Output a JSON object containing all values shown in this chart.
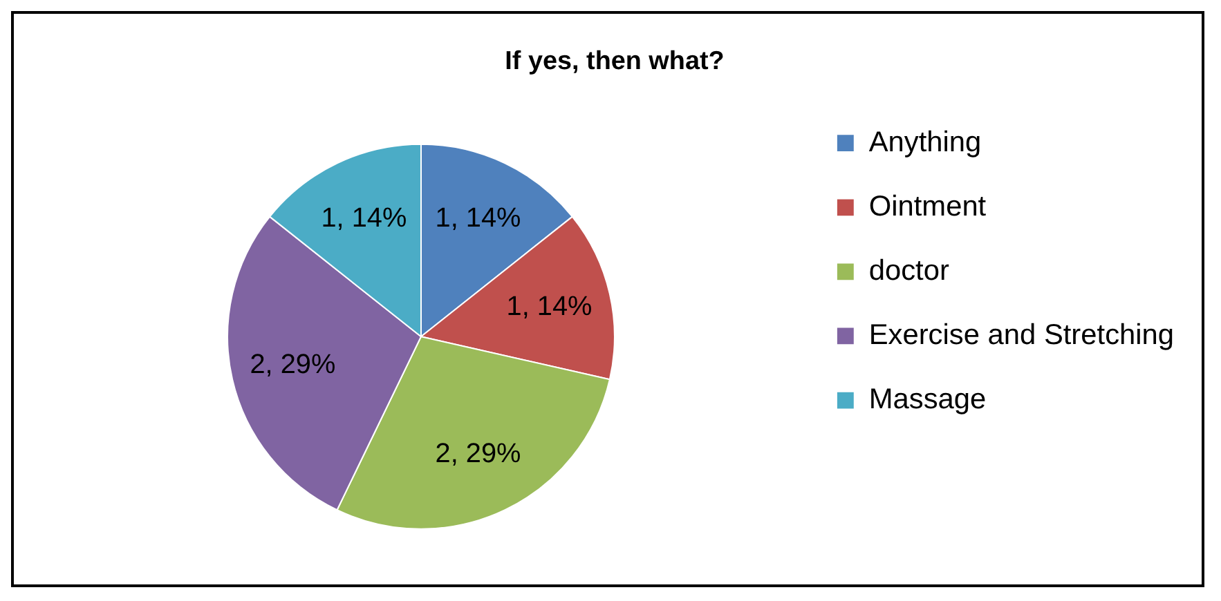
{
  "chart_data": {
    "type": "pie",
    "title": "If yes, then what?",
    "categories": [
      "Anything",
      "Ointment",
      "doctor",
      "Exercise and Stretching",
      "Massage"
    ],
    "values": [
      1,
      1,
      2,
      2,
      1
    ],
    "colors": [
      "#4f81bd",
      "#c0504d",
      "#9bbb59",
      "#8064a2",
      "#4bacc6"
    ],
    "value_labels": [
      "1, 14%",
      "1, 14%",
      "2, 29%",
      "2, 29%",
      "1, 14%"
    ],
    "legend": "right"
  }
}
